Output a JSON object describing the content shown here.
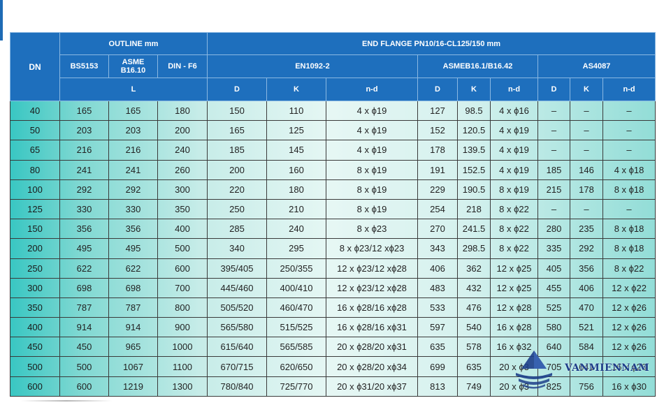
{
  "header": {
    "dn": "DN",
    "outline": "OUTLINE mm",
    "end_flange": "END FLANGE PN10/16-CL125/150 mm",
    "bs5153": "BS5153",
    "asme_line1": "ASME",
    "asme_line2": "B16.10",
    "din": "DIN - F6",
    "en1092": "EN1092-2",
    "asmeb16": "ASMEB16.1/B16.42",
    "as4087": "AS4087",
    "L": "L",
    "D1": "D",
    "K1": "K",
    "nd1": "n-d",
    "D2": "D",
    "K2": "K",
    "nd2": "n-d",
    "D3": "D",
    "K3": "K",
    "nd3": "n-d"
  },
  "rows": [
    [
      "40",
      "165",
      "165",
      "180",
      "150",
      "110",
      "4 x ϕ19",
      "127",
      "98.5",
      "4 x ϕ16",
      "–",
      "–",
      "–"
    ],
    [
      "50",
      "203",
      "203",
      "200",
      "165",
      "125",
      "4 x ϕ19",
      "152",
      "120.5",
      "4 x ϕ19",
      "–",
      "–",
      "–"
    ],
    [
      "65",
      "216",
      "216",
      "240",
      "185",
      "145",
      "4 x ϕ19",
      "178",
      "139.5",
      "4 x ϕ19",
      "–",
      "–",
      "–"
    ],
    [
      "80",
      "241",
      "241",
      "260",
      "200",
      "160",
      "8 x ϕ19",
      "191",
      "152.5",
      "4 x ϕ19",
      "185",
      "146",
      "4 x ϕ18"
    ],
    [
      "100",
      "292",
      "292",
      "300",
      "220",
      "180",
      "8 x ϕ19",
      "229",
      "190.5",
      "8 x ϕ19",
      "215",
      "178",
      "8 x ϕ18"
    ],
    [
      "125",
      "330",
      "330",
      "350",
      "250",
      "210",
      "8 x ϕ19",
      "254",
      "218",
      "8 x ϕ22",
      "–",
      "–",
      "–"
    ],
    [
      "150",
      "356",
      "356",
      "400",
      "285",
      "240",
      "8 x ϕ23",
      "270",
      "241.5",
      "8 x ϕ22",
      "280",
      "235",
      "8 x ϕ18"
    ],
    [
      "200",
      "495",
      "495",
      "500",
      "340",
      "295",
      "8 x ϕ23/12 xϕ23",
      "343",
      "298.5",
      "8 x ϕ22",
      "335",
      "292",
      "8 x ϕ18"
    ],
    [
      "250",
      "622",
      "622",
      "600",
      "395/405",
      "250/355",
      "12 x ϕ23/12 xϕ28",
      "406",
      "362",
      "12 x ϕ25",
      "405",
      "356",
      "8 x ϕ22"
    ],
    [
      "300",
      "698",
      "698",
      "700",
      "445/460",
      "400/410",
      "12 x ϕ23/12 xϕ28",
      "483",
      "432",
      "12 x ϕ25",
      "455",
      "406",
      "12 x ϕ22"
    ],
    [
      "350",
      "787",
      "787",
      "800",
      "505/520",
      "460/470",
      "16 x ϕ28/16 xϕ28",
      "533",
      "476",
      "12 x ϕ28",
      "525",
      "470",
      "12 x ϕ26"
    ],
    [
      "400",
      "914",
      "914",
      "900",
      "565/580",
      "515/525",
      "16 x ϕ28/16 xϕ31",
      "597",
      "540",
      "16 x ϕ28",
      "580",
      "521",
      "12 x ϕ26"
    ],
    [
      "450",
      "450",
      "965",
      "1000",
      "615/640",
      "565/585",
      "20 x ϕ28/20 xϕ31",
      "635",
      "578",
      "16 x ϕ32",
      "640",
      "584",
      "12 x ϕ26"
    ],
    [
      "500",
      "500",
      "1067",
      "1100",
      "670/715",
      "620/650",
      "20 x ϕ28/20 xϕ34",
      "699",
      "635",
      "20 x ϕ3",
      "705",
      "641",
      "16 x ϕ26"
    ],
    [
      "600",
      "600",
      "1219",
      "1300",
      "780/840",
      "725/770",
      "20 x ϕ31/20 xϕ37",
      "813",
      "749",
      "20 x ϕ3",
      "825",
      "756",
      "16 x ϕ30"
    ]
  ],
  "watermark": "VANMIENNAM",
  "colors": {
    "header_bg": "#1e6fbd",
    "cell_gradient_edge": "#2fc4c0",
    "cell_gradient_center": "#e6f7f4",
    "logo_blue": "#1d3f8a"
  }
}
